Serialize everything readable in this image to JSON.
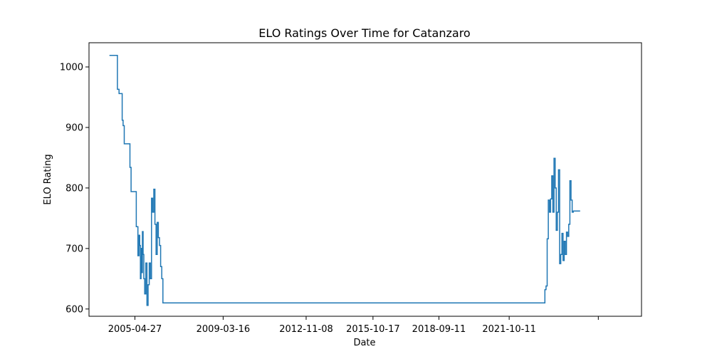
{
  "chart_data": {
    "type": "line",
    "title": "ELO Ratings Over Time for Catanzaro",
    "xlabel": "Date",
    "ylabel": "ELO Rating",
    "grid": false,
    "legend": "none",
    "xlim": [
      2003.3,
      2027.6
    ],
    "ylim": [
      588,
      1040
    ],
    "x_ticks": [
      {
        "value": 2005.32,
        "label": "2005-04-27"
      },
      {
        "value": 2009.2,
        "label": "2009-03-16"
      },
      {
        "value": 2012.85,
        "label": "2012-11-08"
      },
      {
        "value": 2015.79,
        "label": "2015-10-17"
      },
      {
        "value": 2018.69,
        "label": "2018-09-11"
      },
      {
        "value": 2021.78,
        "label": "2021-10-11"
      },
      {
        "value": 2025.7,
        "label": ""
      }
    ],
    "y_ticks": [
      600,
      700,
      800,
      900,
      1000
    ],
    "series": [
      {
        "name": "Catanzaro",
        "color": "#1f77b4",
        "x": [
          2004.2,
          2004.5,
          2004.55,
          2004.62,
          2004.65,
          2004.7,
          2004.76,
          2004.8,
          2004.85,
          2004.88,
          2004.93,
          2005.0,
          2005.05,
          2005.1,
          2005.15,
          2005.2,
          2005.25,
          2005.3,
          2005.38,
          2005.45,
          2005.5,
          2005.53,
          2005.56,
          2005.59,
          2005.62,
          2005.65,
          2005.68,
          2005.71,
          2005.75,
          2005.8,
          2005.85,
          2005.9,
          2005.95,
          2006.0,
          2006.05,
          2006.1,
          2006.15,
          2006.2,
          2006.25,
          2006.3,
          2006.35,
          2006.4,
          2006.45,
          2006.5,
          2006.55,
          2006.6,
          2006.65,
          2006.7,
          2006.75,
          2006.8,
          2006.85,
          2006.9,
          2006.95,
          2007.0,
          2007.05,
          2007.1,
          2007.15,
          2007.2,
          2007.25,
          2007.3,
          2007.35,
          2007.4,
          2007.45,
          2007.5,
          2023.3,
          2023.35,
          2023.4,
          2023.45,
          2023.5,
          2023.55,
          2023.6,
          2023.65,
          2023.7,
          2023.75,
          2023.8,
          2023.85,
          2023.9,
          2023.95,
          2024.0,
          2024.05,
          2024.1,
          2024.15,
          2024.2,
          2024.25,
          2024.3,
          2024.35,
          2024.4,
          2024.45,
          2024.5,
          2024.55,
          2024.6,
          2024.65,
          2024.7,
          2024.75,
          2024.8,
          2024.85,
          2024.9
        ],
        "values": [
          1019,
          1019,
          963,
          956,
          956,
          956,
          912,
          903,
          873,
          873,
          873,
          873,
          873,
          834,
          794,
          794,
          794,
          794,
          736,
          688,
          722,
          705,
          650,
          700,
          660,
          728,
          690,
          650,
          625,
          676,
          606,
          640,
          676,
          650,
          783,
          760,
          798,
          740,
          690,
          743,
          718,
          705,
          670,
          650,
          610,
          610,
          610,
          610,
          610,
          610,
          610,
          610,
          610,
          610,
          610,
          610,
          610,
          610,
          610,
          610,
          610,
          610,
          610,
          610,
          610,
          632,
          638,
          716,
          780,
          760,
          782,
          820,
          760,
          849,
          800,
          730,
          760,
          830,
          675,
          690,
          725,
          680,
          712,
          690,
          727,
          720,
          740,
          812,
          780,
          760,
          762,
          762,
          762,
          762,
          762,
          762,
          762
        ]
      }
    ]
  }
}
